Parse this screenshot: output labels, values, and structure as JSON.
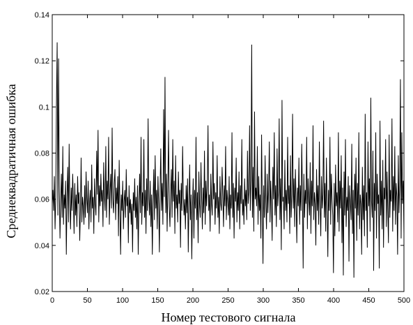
{
  "chart_data": {
    "type": "line",
    "title": "",
    "xlabel": "Номер тестового сигнала",
    "ylabel": "Среднеквадратичная ошибка",
    "xlim": [
      0,
      500
    ],
    "ylim": [
      0.02,
      0.14
    ],
    "x_ticks": [
      0,
      50,
      100,
      150,
      200,
      250,
      300,
      350,
      400,
      450,
      500
    ],
    "y_ticks": [
      "0.02",
      "0.04",
      "0.06",
      "0.08",
      "0.1",
      "0.12",
      "0.14"
    ],
    "x_tick_labels": [
      "0",
      "50",
      "100",
      "150",
      "200",
      "250",
      "300",
      "350",
      "400",
      "450",
      "500"
    ],
    "y_tick_labels": [
      "0.02",
      "0.04",
      "0.06",
      "0.08",
      "0.1",
      "0.12",
      "0.14"
    ],
    "grid": false,
    "legend": "none",
    "line_color": "#000000",
    "notable_peaks": [
      {
        "x": 7,
        "y": 0.128
      },
      {
        "x": 9,
        "y": 0.121
      },
      {
        "x": 160,
        "y": 0.113
      },
      {
        "x": 283,
        "y": 0.127
      },
      {
        "x": 325,
        "y": 0.103
      },
      {
        "x": 455,
        "y": 0.104
      },
      {
        "x": 498,
        "y": 0.112
      }
    ],
    "series": [
      {
        "values": [
          0.058,
          0.064,
          0.055,
          0.07,
          0.047,
          0.061,
          0.102,
          0.128,
          0.053,
          0.121,
          0.066,
          0.043,
          0.059,
          0.071,
          0.052,
          0.083,
          0.049,
          0.062,
          0.056,
          0.068,
          0.036,
          0.061,
          0.074,
          0.05,
          0.084,
          0.058,
          0.047,
          0.065,
          0.055,
          0.071,
          0.06,
          0.045,
          0.067,
          0.053,
          0.062,
          0.048,
          0.07,
          0.058,
          0.063,
          0.042,
          0.055,
          0.078,
          0.05,
          0.061,
          0.057,
          0.049,
          0.066,
          0.052,
          0.072,
          0.06,
          0.054,
          0.068,
          0.047,
          0.059,
          0.064,
          0.05,
          0.075,
          0.056,
          0.061,
          0.045,
          0.069,
          0.058,
          0.053,
          0.081,
          0.062,
          0.09,
          0.05,
          0.066,
          0.057,
          0.071,
          0.059,
          0.064,
          0.048,
          0.076,
          0.061,
          0.055,
          0.083,
          0.052,
          0.068,
          0.06,
          0.087,
          0.049,
          0.063,
          0.071,
          0.056,
          0.091,
          0.06,
          0.054,
          0.067,
          0.073,
          0.051,
          0.065,
          0.058,
          0.07,
          0.044,
          0.077,
          0.057,
          0.036,
          0.062,
          0.055,
          0.068,
          0.047,
          0.059,
          0.064,
          0.052,
          0.073,
          0.057,
          0.061,
          0.041,
          0.066,
          0.054,
          0.06,
          0.049,
          0.058,
          0.037,
          0.063,
          0.055,
          0.069,
          0.052,
          0.061,
          0.047,
          0.066,
          0.036,
          0.058,
          0.071,
          0.054,
          0.087,
          0.049,
          0.063,
          0.057,
          0.086,
          0.052,
          0.064,
          0.045,
          0.069,
          0.055,
          0.095,
          0.06,
          0.053,
          0.068,
          0.048,
          0.062,
          0.036,
          0.058,
          0.073,
          0.051,
          0.079,
          0.056,
          0.064,
          0.047,
          0.07,
          0.058,
          0.037,
          0.064,
          0.082,
          0.055,
          0.067,
          0.049,
          0.099,
          0.061,
          0.113,
          0.054,
          0.071,
          0.046,
          0.065,
          0.09,
          0.057,
          0.048,
          0.063,
          0.073,
          0.052,
          0.086,
          0.059,
          0.068,
          0.045,
          0.079,
          0.056,
          0.062,
          0.05,
          0.072,
          0.058,
          0.064,
          0.039,
          0.067,
          0.055,
          0.083,
          0.061,
          0.053,
          0.06,
          0.047,
          0.066,
          0.054,
          0.069,
          0.037,
          0.058,
          0.075,
          0.051,
          0.062,
          0.034,
          0.057,
          0.069,
          0.043,
          0.064,
          0.056,
          0.087,
          0.051,
          0.063,
          0.041,
          0.072,
          0.058,
          0.052,
          0.076,
          0.06,
          0.047,
          0.065,
          0.054,
          0.081,
          0.049,
          0.068,
          0.057,
          0.066,
          0.092,
          0.055,
          0.062,
          0.046,
          0.071,
          0.058,
          0.053,
          0.085,
          0.06,
          0.067,
          0.049,
          0.063,
          0.056,
          0.079,
          0.052,
          0.061,
          0.045,
          0.07,
          0.058,
          0.055,
          0.074,
          0.062,
          0.048,
          0.066,
          0.057,
          0.083,
          0.051,
          0.064,
          0.059,
          0.053,
          0.07,
          0.047,
          0.062,
          0.056,
          0.089,
          0.052,
          0.067,
          0.043,
          0.065,
          0.059,
          0.078,
          0.05,
          0.063,
          0.055,
          0.072,
          0.047,
          0.066,
          0.058,
          0.086,
          0.053,
          0.06,
          0.049,
          0.069,
          0.057,
          0.064,
          0.051,
          0.081,
          0.058,
          0.063,
          0.092,
          0.055,
          0.068,
          0.127,
          0.052,
          0.074,
          0.046,
          0.098,
          0.06,
          0.065,
          0.057,
          0.083,
          0.049,
          0.07,
          0.055,
          0.062,
          0.043,
          0.088,
          0.058,
          0.032,
          0.066,
          0.052,
          0.079,
          0.059,
          0.047,
          0.071,
          0.054,
          0.064,
          0.085,
          0.05,
          0.068,
          0.058,
          0.042,
          0.074,
          0.06,
          0.089,
          0.053,
          0.066,
          0.048,
          0.082,
          0.057,
          0.063,
          0.095,
          0.051,
          0.069,
          0.038,
          0.103,
          0.059,
          0.061,
          0.047,
          0.077,
          0.055,
          0.064,
          0.05,
          0.087,
          0.058,
          0.066,
          0.045,
          0.079,
          0.052,
          0.062,
          0.097,
          0.056,
          0.069,
          0.048,
          0.073,
          0.059,
          0.041,
          0.065,
          0.057,
          0.078,
          0.049,
          0.066,
          0.055,
          0.084,
          0.062,
          0.03,
          0.071,
          0.052,
          0.064,
          0.058,
          0.087,
          0.047,
          0.069,
          0.06,
          0.053,
          0.076,
          0.045,
          0.068,
          0.057,
          0.092,
          0.051,
          0.063,
          0.058,
          0.04,
          0.073,
          0.055,
          0.066,
          0.049,
          0.085,
          0.059,
          0.044,
          0.07,
          0.056,
          0.062,
          0.094,
          0.052,
          0.067,
          0.046,
          0.078,
          0.058,
          0.035,
          0.064,
          0.055,
          0.087,
          0.049,
          0.071,
          0.06,
          0.053,
          0.028,
          0.067,
          0.044,
          0.075,
          0.057,
          0.063,
          0.05,
          0.089,
          0.046,
          0.068,
          0.056,
          0.079,
          0.041,
          0.065,
          0.027,
          0.072,
          0.053,
          0.086,
          0.048,
          0.061,
          0.055,
          0.07,
          0.033,
          0.066,
          0.058,
          0.051,
          0.084,
          0.045,
          0.064,
          0.026,
          0.071,
          0.056,
          0.078,
          0.042,
          0.067,
          0.053,
          0.089,
          0.047,
          0.062,
          0.058,
          0.036,
          0.074,
          0.051,
          0.066,
          0.044,
          0.097,
          0.055,
          0.063,
          0.039,
          0.085,
          0.057,
          0.069,
          0.046,
          0.104,
          0.059,
          0.052,
          0.081,
          0.029,
          0.067,
          0.055,
          0.089,
          0.043,
          0.071,
          0.058,
          0.062,
          0.03,
          0.094,
          0.053,
          0.068,
          0.047,
          0.077,
          0.039,
          0.065,
          0.06,
          0.086,
          0.048,
          0.072,
          0.056,
          0.041,
          0.088,
          0.052,
          0.064,
          0.059,
          0.095,
          0.046,
          0.07,
          0.055,
          0.083,
          0.049,
          0.067,
          0.061,
          0.036,
          0.079,
          0.054,
          0.066,
          0.112,
          0.043,
          0.089,
          0.058,
          0.068,
          0.045
        ]
      }
    ]
  }
}
